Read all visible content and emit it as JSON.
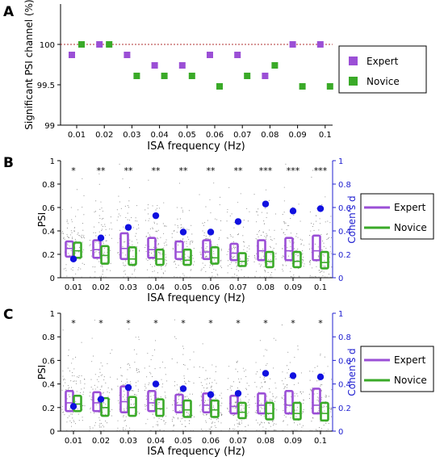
{
  "colors": {
    "expert": "#9b4fd6",
    "novice": "#3aaa28",
    "cohen": "#1010e0",
    "ref_line": "#b03030",
    "jitter": "#888888"
  },
  "chart_data": [
    {
      "panel": "A",
      "type": "scatter",
      "xlabel": "ISA frequency (Hz)",
      "ylabel": "Significant PSI channel (%)",
      "x": [
        0.01,
        0.02,
        0.03,
        0.04,
        0.05,
        0.06,
        0.07,
        0.08,
        0.09,
        0.1
      ],
      "x_tick_labels": [
        "0.01",
        "0.02",
        "0.03",
        "0.04",
        "0.05",
        "0.06",
        "0.07",
        "0.08",
        "0.09",
        "0.1"
      ],
      "ylim": [
        99,
        100.5
      ],
      "y_ticks": [
        99,
        99.5,
        100
      ],
      "y_tick_labels": [
        "99",
        "99.5",
        "100"
      ],
      "reference_line": 100,
      "series": [
        {
          "name": "Expert",
          "values": [
            99.87,
            100.0,
            99.87,
            99.74,
            99.74,
            99.87,
            99.87,
            99.61,
            100.0,
            100.0
          ]
        },
        {
          "name": "Novice",
          "values": [
            100.0,
            100.0,
            99.61,
            99.61,
            99.61,
            99.48,
            99.61,
            99.74,
            99.48,
            99.48
          ]
        }
      ],
      "legend": {
        "position": "right",
        "entries": [
          "Expert",
          "Novice"
        ]
      }
    },
    {
      "panel": "B",
      "type": "box",
      "xlabel": "ISA frequency (Hz)",
      "ylabel": "PSI",
      "ylabel_right": "Cohen's d",
      "categories": [
        "0.01",
        "0.02",
        "0.03",
        "0.04",
        "0.05",
        "0.06",
        "0.07",
        "0.08",
        "0.09",
        "0.1"
      ],
      "ylim": [
        0,
        1
      ],
      "y_ticks": [
        "0",
        "0.2",
        "0.4",
        "0.6",
        "0.8",
        "1"
      ],
      "ylim_right": [
        0,
        1
      ],
      "y_ticks_right": [
        "0",
        "0.2",
        "0.4",
        "0.6",
        "0.8",
        "1"
      ],
      "significance": [
        "*",
        "**",
        "**",
        "**",
        "**",
        "**",
        "**",
        "***",
        "***",
        "***"
      ],
      "series": [
        {
          "name": "Expert",
          "q1": [
            0.18,
            0.17,
            0.16,
            0.17,
            0.16,
            0.16,
            0.15,
            0.15,
            0.15,
            0.15
          ],
          "q3": [
            0.31,
            0.32,
            0.38,
            0.34,
            0.31,
            0.32,
            0.29,
            0.32,
            0.34,
            0.36
          ],
          "median": [
            0.25,
            0.24,
            0.25,
            0.24,
            0.22,
            0.22,
            0.21,
            0.23,
            0.23,
            0.23
          ]
        },
        {
          "name": "Novice",
          "q1": [
            0.17,
            0.12,
            0.11,
            0.11,
            0.11,
            0.12,
            0.1,
            0.09,
            0.09,
            0.08
          ],
          "q3": [
            0.3,
            0.27,
            0.26,
            0.24,
            0.24,
            0.26,
            0.21,
            0.22,
            0.22,
            0.22
          ],
          "median": [
            0.23,
            0.19,
            0.16,
            0.16,
            0.15,
            0.17,
            0.14,
            0.14,
            0.14,
            0.13
          ]
        }
      ],
      "cohens_d": [
        0.16,
        0.34,
        0.43,
        0.53,
        0.39,
        0.39,
        0.48,
        0.63,
        0.57,
        0.59
      ],
      "legend": {
        "position": "right",
        "entries": [
          "Expert",
          "Novice"
        ]
      }
    },
    {
      "panel": "C",
      "type": "box",
      "xlabel": "ISA frequency (Hz)",
      "ylabel": "PSI",
      "ylabel_right": "Cohen's d",
      "categories": [
        "0.01",
        "0.02",
        "0.03",
        "0.04",
        "0.05",
        "0.06",
        "0.07",
        "0.08",
        "0.09",
        "0.1"
      ],
      "ylim": [
        0,
        1
      ],
      "y_ticks": [
        "0",
        "0.2",
        "0.4",
        "0.6",
        "0.8",
        "1"
      ],
      "ylim_right": [
        0,
        1
      ],
      "y_ticks_right": [
        "0",
        "0.2",
        "0.4",
        "0.6",
        "0.8",
        "1"
      ],
      "significance": [
        "*",
        "*",
        "*",
        "*",
        "*",
        "*",
        "*",
        "*",
        "*",
        "*"
      ],
      "series": [
        {
          "name": "Expert",
          "q1": [
            0.17,
            0.17,
            0.16,
            0.17,
            0.16,
            0.16,
            0.15,
            0.15,
            0.15,
            0.15
          ],
          "q3": [
            0.34,
            0.33,
            0.38,
            0.34,
            0.31,
            0.32,
            0.3,
            0.32,
            0.34,
            0.36
          ],
          "median": [
            0.24,
            0.24,
            0.25,
            0.24,
            0.22,
            0.22,
            0.21,
            0.22,
            0.22,
            0.22
          ]
        },
        {
          "name": "Novice",
          "q1": [
            0.17,
            0.13,
            0.13,
            0.13,
            0.12,
            0.12,
            0.11,
            0.1,
            0.1,
            0.09
          ],
          "q3": [
            0.3,
            0.28,
            0.29,
            0.27,
            0.26,
            0.26,
            0.24,
            0.24,
            0.24,
            0.24
          ],
          "median": [
            0.23,
            0.2,
            0.2,
            0.19,
            0.18,
            0.18,
            0.16,
            0.15,
            0.15,
            0.15
          ]
        }
      ],
      "cohens_d": [
        0.21,
        0.27,
        0.37,
        0.4,
        0.36,
        0.31,
        0.32,
        0.49,
        0.47,
        0.46
      ],
      "legend": {
        "position": "right",
        "entries": [
          "Expert",
          "Novice"
        ]
      }
    }
  ]
}
